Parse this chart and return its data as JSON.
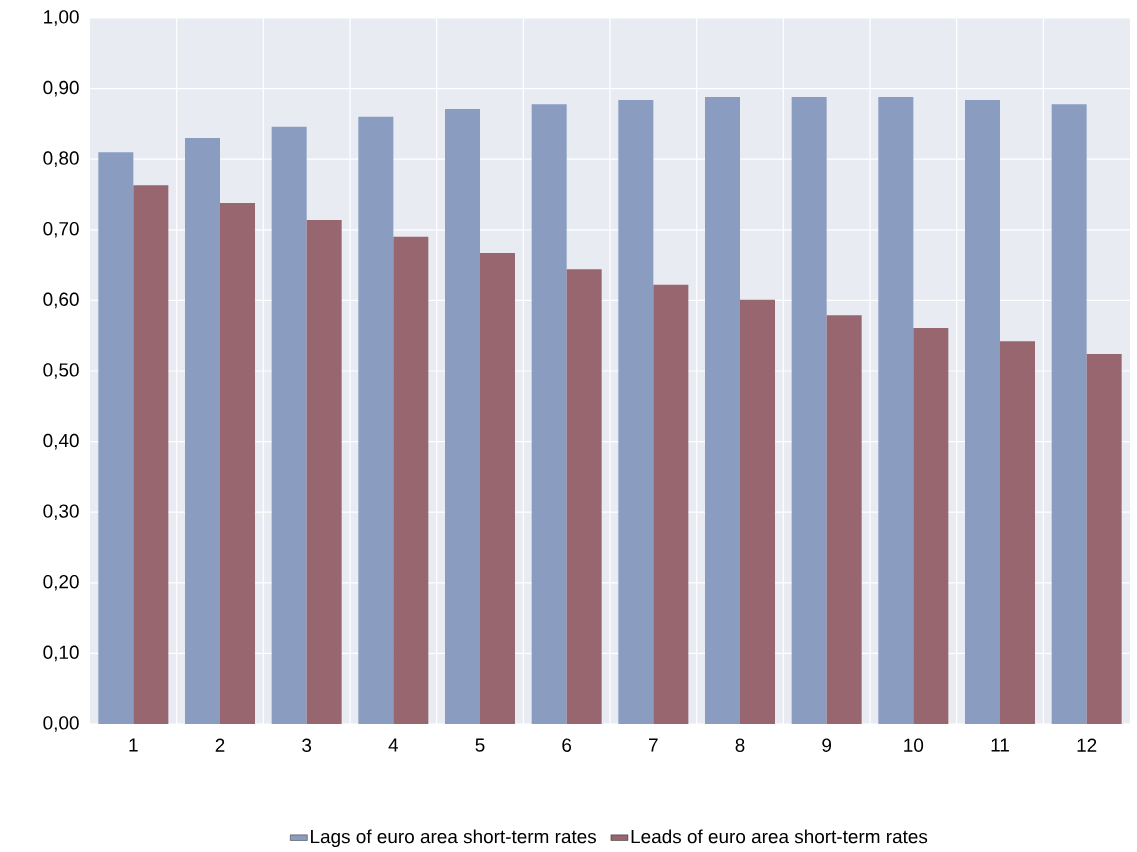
{
  "chart_data": {
    "type": "bar",
    "categories": [
      "1",
      "2",
      "3",
      "4",
      "5",
      "6",
      "7",
      "8",
      "9",
      "10",
      "11",
      "12"
    ],
    "series": [
      {
        "name": "Lags of euro area short-term rates",
        "color": "#8a9dc0",
        "values": [
          0.81,
          0.83,
          0.846,
          0.86,
          0.871,
          0.878,
          0.884,
          0.888,
          0.888,
          0.888,
          0.884,
          0.878
        ]
      },
      {
        "name": "Leads of euro area short-term rates",
        "color": "#98666f",
        "values": [
          0.763,
          0.738,
          0.714,
          0.69,
          0.667,
          0.644,
          0.622,
          0.601,
          0.579,
          0.561,
          0.542,
          0.524
        ]
      }
    ],
    "ylim": [
      0,
      1
    ],
    "yticks": [
      {
        "value": 0,
        "label": "0,00"
      },
      {
        "value": 0.1,
        "label": "0,10"
      },
      {
        "value": 0.2,
        "label": "0,20"
      },
      {
        "value": 0.3,
        "label": "0,30"
      },
      {
        "value": 0.4,
        "label": "0,40"
      },
      {
        "value": 0.5,
        "label": "0,50"
      },
      {
        "value": 0.6,
        "label": "0,60"
      },
      {
        "value": 0.7,
        "label": "0,70"
      },
      {
        "value": 0.8,
        "label": "0,80"
      },
      {
        "value": 0.9,
        "label": "0,90"
      },
      {
        "value": 1,
        "label": "1,00"
      }
    ],
    "grid": true,
    "legend": "bottom"
  }
}
